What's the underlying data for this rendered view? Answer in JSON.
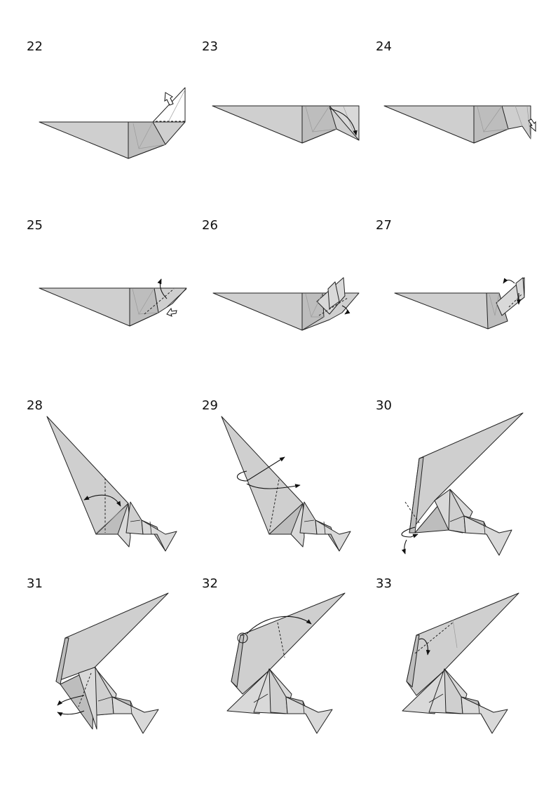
{
  "diagram": {
    "steps": [
      {
        "number": "22"
      },
      {
        "number": "23"
      },
      {
        "number": "24"
      },
      {
        "number": "25"
      },
      {
        "number": "26"
      },
      {
        "number": "27"
      },
      {
        "number": "28"
      },
      {
        "number": "29"
      },
      {
        "number": "30"
      },
      {
        "number": "31"
      },
      {
        "number": "32"
      },
      {
        "number": "33"
      }
    ]
  }
}
